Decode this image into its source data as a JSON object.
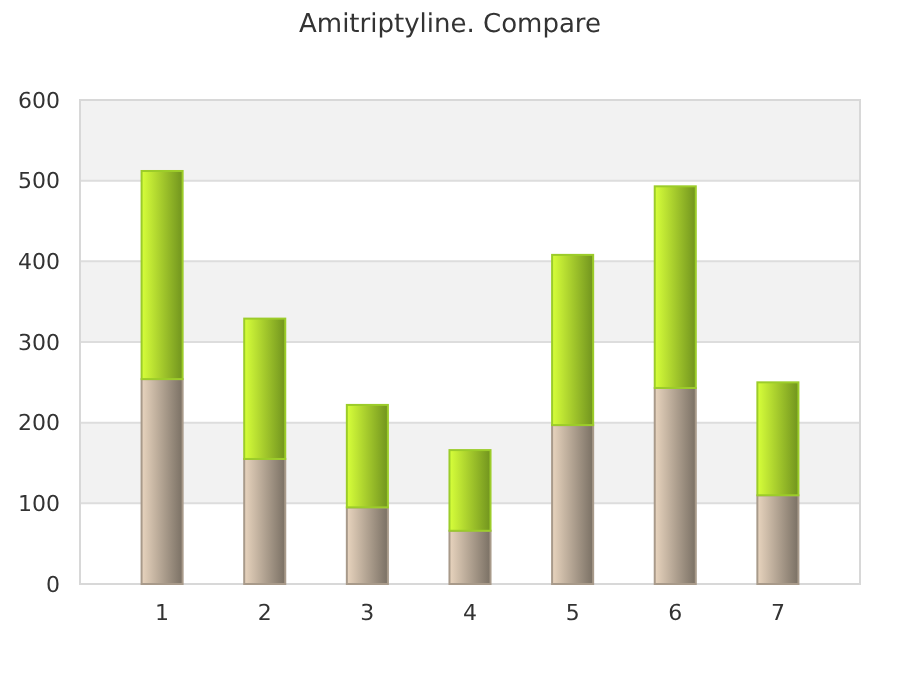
{
  "chart_data": {
    "type": "bar",
    "title": "Amitriptyline. Compare",
    "categories": [
      "1",
      "2",
      "3",
      "4",
      "5",
      "6",
      "7"
    ],
    "stacked": true,
    "series": [
      {
        "color": "#a89a8a",
        "values": [
          254,
          155,
          95,
          66,
          197,
          243,
          110
        ]
      },
      {
        "color": "#9ccc2a",
        "values": [
          258,
          174,
          127,
          100,
          211,
          250,
          140
        ]
      }
    ],
    "ylim": [
      0,
      600
    ],
    "yticks": [
      0,
      100,
      200,
      300,
      400,
      500,
      600
    ],
    "grid": "y"
  }
}
